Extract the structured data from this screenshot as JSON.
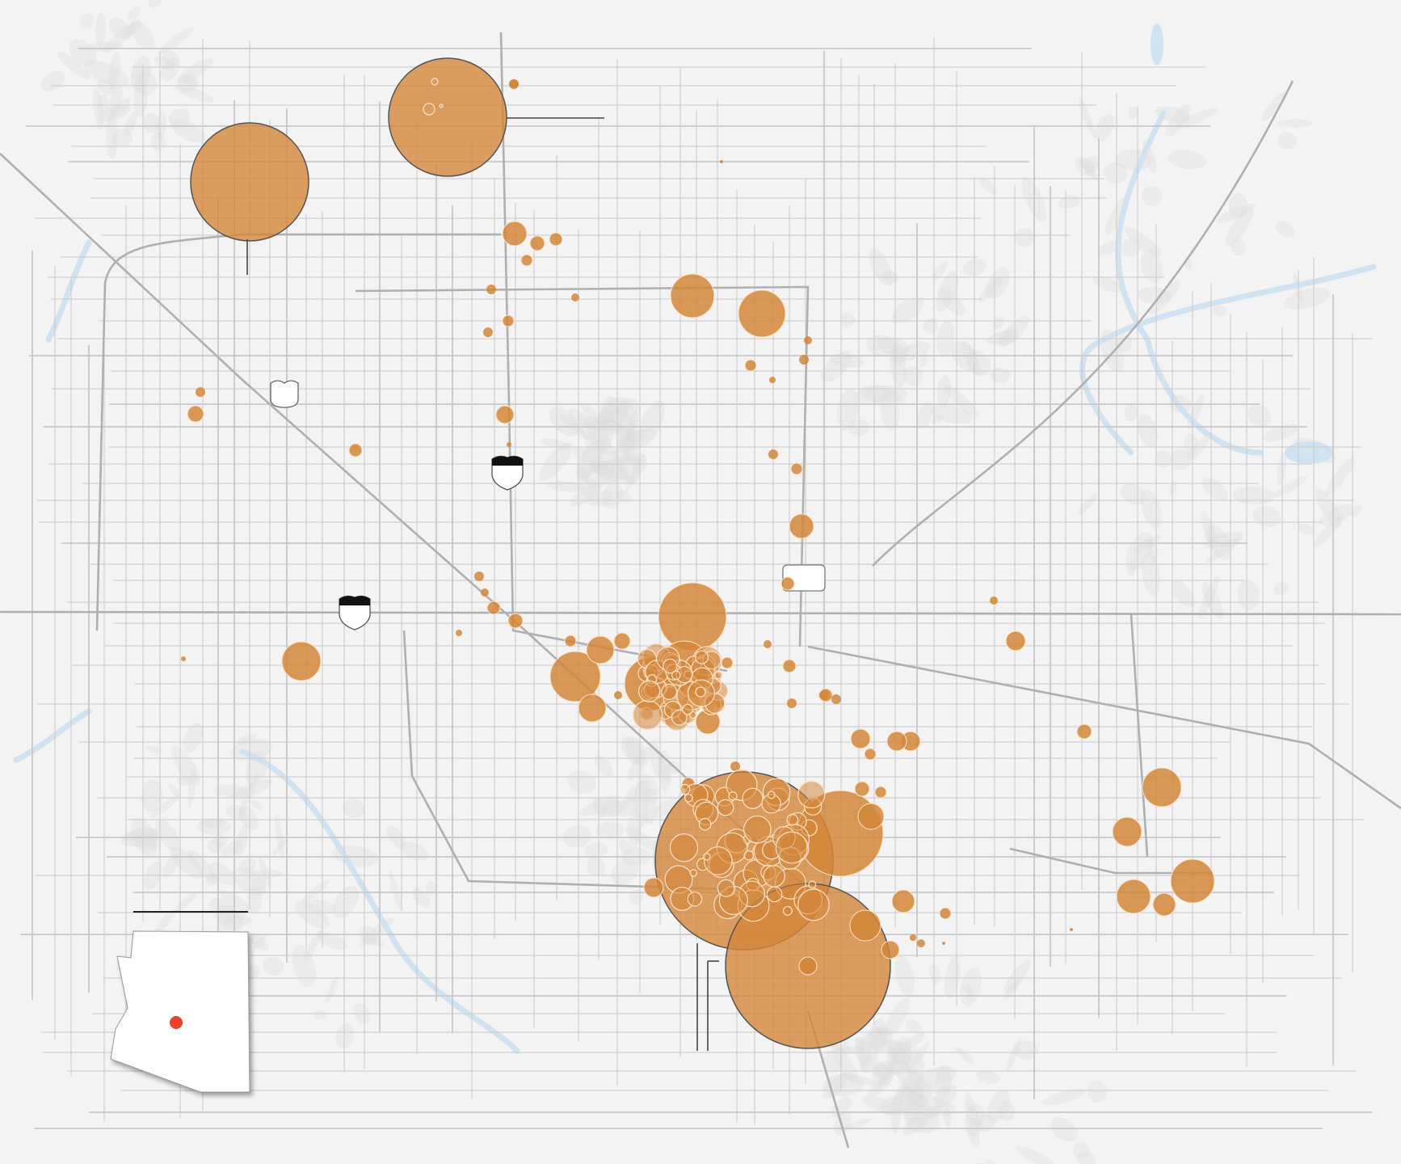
{
  "map": {
    "type": "bubble-map",
    "colors": {
      "background": "#f3f3f3",
      "road": "#c9c9c9",
      "highway": "#b0b0b0",
      "water": "#cfe3f1",
      "terrain": "#dcdcdc",
      "bubble_fill": "#d4863a",
      "bubble_stroke_large": "#555555",
      "bubble_stroke_small": "#fbe3c8",
      "inset_state": "#ffffff",
      "inset_marker": "#e8432a"
    },
    "icons": [
      "us-highway-shield-icon",
      "interstate-shield-icon",
      "interstate-shield-icon",
      "state-route-sign-icon"
    ],
    "inset": {
      "region": "Arizona",
      "marker": "location-dot"
    }
  }
}
